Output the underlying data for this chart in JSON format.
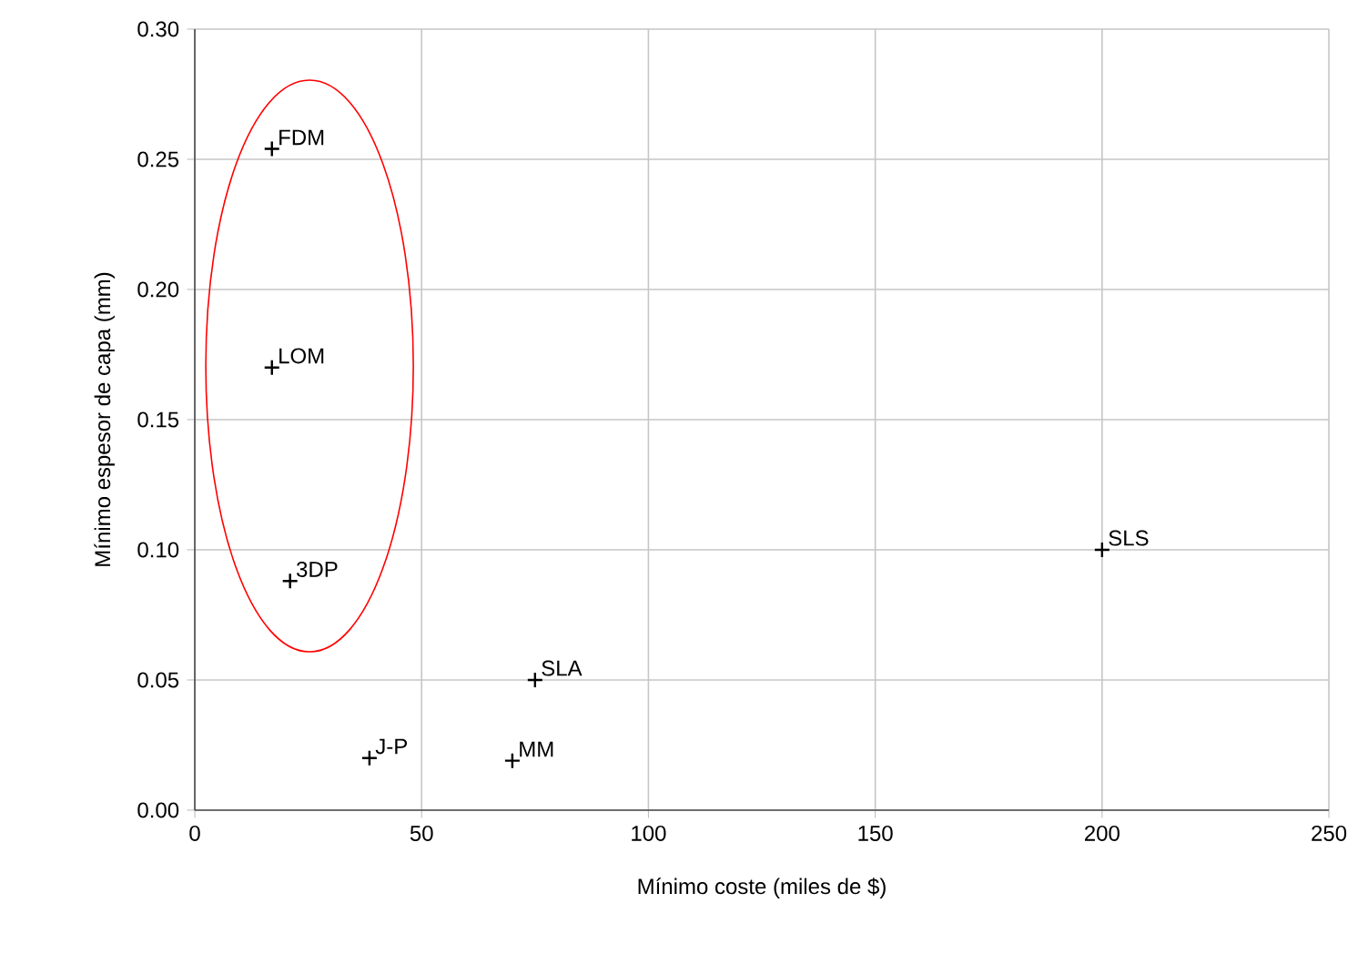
{
  "chart_data": {
    "type": "scatter",
    "xlabel": "Mínimo coste (miles de $)",
    "ylabel": "Mínimo espesor de capa (mm)",
    "series": [
      {
        "color": "#000000",
        "x": [
          17,
          17,
          21,
          38.5,
          70,
          75,
          200
        ],
        "values": [
          0.254,
          0.17,
          0.088,
          0.02,
          0.019,
          0.05,
          0.1
        ]
      }
    ],
    "xlim": [
      0,
      250
    ],
    "xticks": [
      0,
      50,
      100,
      150,
      200,
      250
    ],
    "ylim": [
      0,
      0.3
    ],
    "yticks": [
      {
        "value": 0,
        "label": "0.00"
      },
      0.05,
      {
        "value": 0.1,
        "label": "0.10"
      },
      0.15,
      {
        "value": 0.2,
        "label": "0.20"
      },
      0.25,
      {
        "value": 0.3,
        "label": "0.30"
      }
    ],
    "grid": true,
    "marker": "cross",
    "annotations": [
      {
        "text": "FDM",
        "x": 17,
        "y": 0.254
      },
      {
        "text": "LOM",
        "x": 17,
        "y": 0.17
      },
      {
        "text": "3DP",
        "x": 21,
        "y": 0.088
      },
      {
        "text": "J-P",
        "x": 38.5,
        "y": 0.02
      },
      {
        "text": "MM",
        "x": 70,
        "y": 0.019
      },
      {
        "text": "SLA",
        "x": 75,
        "y": 0.05
      },
      {
        "text": "SLS",
        "x": 200,
        "y": 0.1
      }
    ]
  }
}
